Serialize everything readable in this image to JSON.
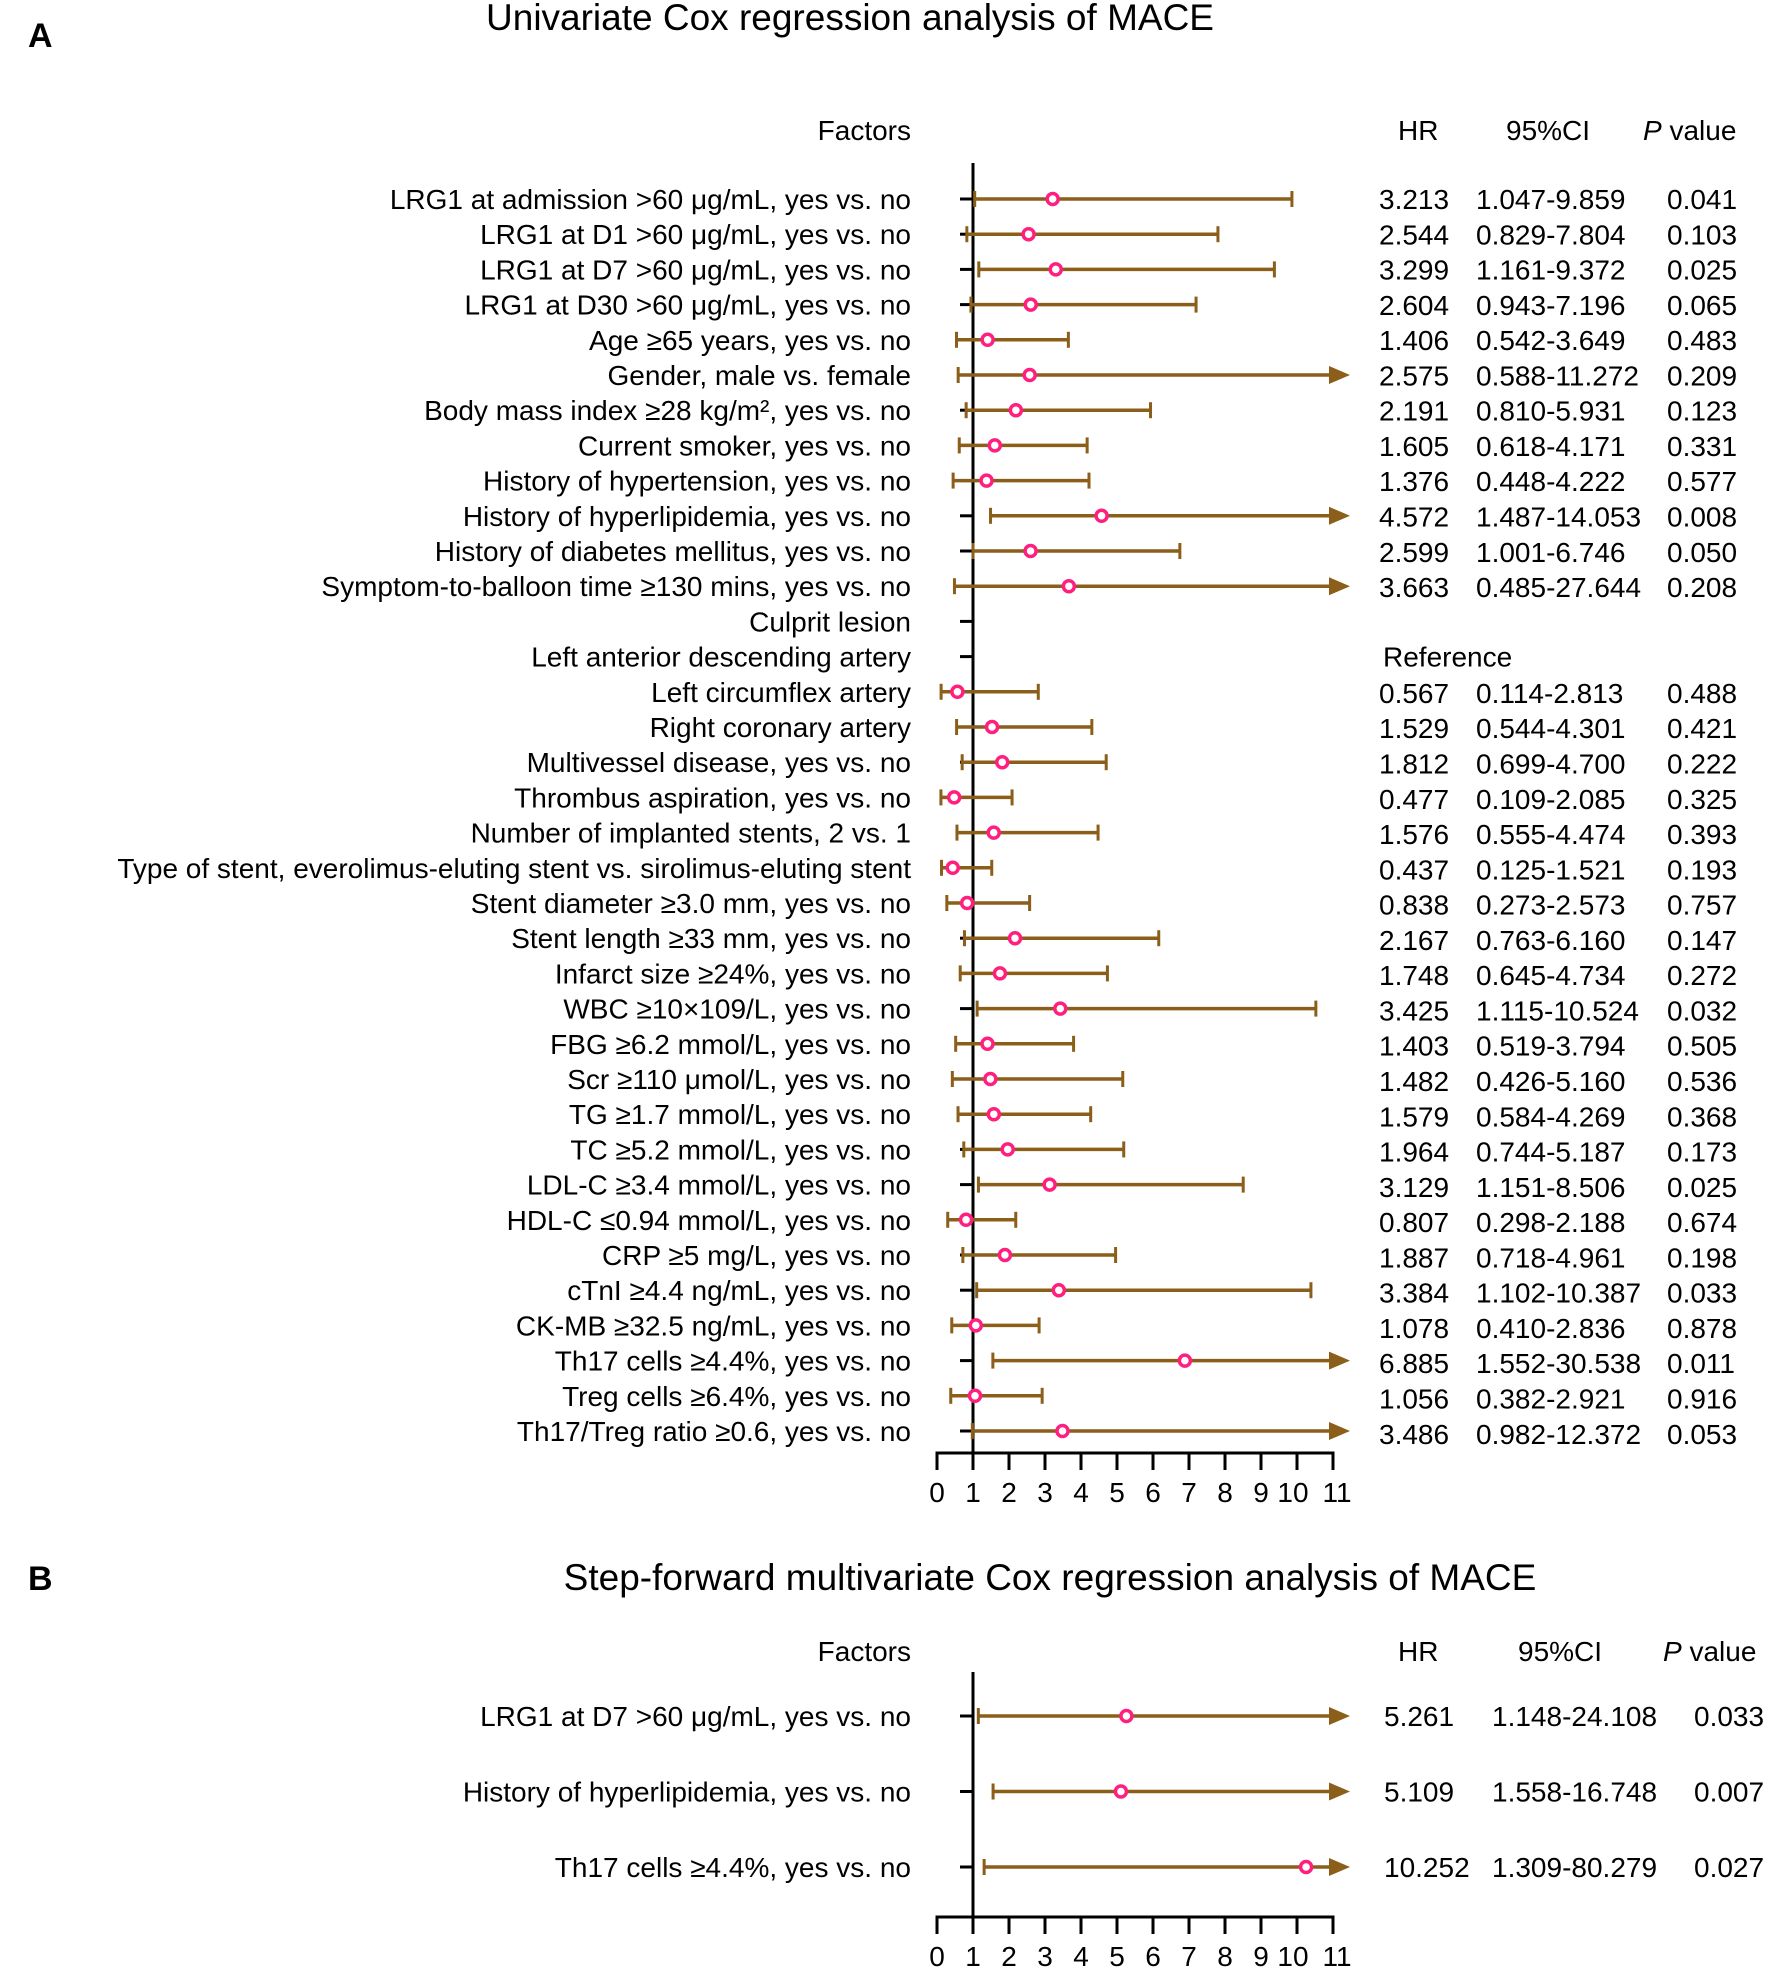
{
  "colors": {
    "whisker": "#8B5E1A",
    "point": "#FF1F7F",
    "axis": "#000000"
  },
  "chart_data": [
    {
      "type": "forest",
      "panel": "A",
      "title": "Univariate  Cox regression analysis of MACE",
      "headers": {
        "factors": "Factors",
        "hr": "HR",
        "ci": "95%CI",
        "p_italic": "P",
        "p_rest": " value"
      },
      "xlim": [
        0,
        11
      ],
      "xticks": [
        0,
        1,
        2,
        3,
        4,
        5,
        6,
        7,
        8,
        9,
        10,
        11
      ],
      "reference_line": 1,
      "rows": [
        {
          "label": "LRG1 at admission >60 μg/mL, yes vs. no",
          "hr": 3.213,
          "lo": 1.047,
          "hi": 9.859,
          "hr_text": "3.213",
          "ci_text": "1.047-9.859",
          "p": "0.041"
        },
        {
          "label": "LRG1 at D1 >60 μg/mL, yes vs. no",
          "hr": 2.544,
          "lo": 0.829,
          "hi": 7.804,
          "hr_text": "2.544",
          "ci_text": "0.829-7.804",
          "p": "0.103"
        },
        {
          "label": "LRG1 at D7 >60 μg/mL, yes vs. no",
          "hr": 3.299,
          "lo": 1.161,
          "hi": 9.372,
          "hr_text": "3.299",
          "ci_text": "1.161-9.372",
          "p": "0.025"
        },
        {
          "label": "LRG1 at D30 >60 μg/mL, yes vs. no",
          "hr": 2.604,
          "lo": 0.943,
          "hi": 7.196,
          "hr_text": "2.604",
          "ci_text": "0.943-7.196",
          "p": "0.065"
        },
        {
          "label": "Age ≥65 years, yes vs. no",
          "hr": 1.406,
          "lo": 0.542,
          "hi": 3.649,
          "hr_text": "1.406",
          "ci_text": "0.542-3.649",
          "p": "0.483"
        },
        {
          "label": "Gender, male vs. female",
          "hr": 2.575,
          "lo": 0.588,
          "hi": 11.272,
          "hr_text": "2.575",
          "ci_text": "0.588-11.272",
          "p": "0.209"
        },
        {
          "label": "Body mass index ≥28 kg/m²,  yes vs. no",
          "hr": 2.191,
          "lo": 0.81,
          "hi": 5.931,
          "hr_text": "2.191",
          "ci_text": "0.810-5.931",
          "p": "0.123"
        },
        {
          "label": "Current smoker, yes vs. no",
          "hr": 1.605,
          "lo": 0.618,
          "hi": 4.171,
          "hr_text": "1.605",
          "ci_text": "0.618-4.171",
          "p": "0.331"
        },
        {
          "label": "History of hypertension, yes vs. no",
          "hr": 1.376,
          "lo": 0.448,
          "hi": 4.222,
          "hr_text": "1.376",
          "ci_text": "0.448-4.222",
          "p": "0.577"
        },
        {
          "label": "History of hyperlipidemia, yes vs. no",
          "hr": 4.572,
          "lo": 1.487,
          "hi": 14.053,
          "hr_text": "4.572",
          "ci_text": "1.487-14.053",
          "p": "0.008"
        },
        {
          "label": "History of diabetes mellitus, yes vs. no",
          "hr": 2.599,
          "lo": 1.001,
          "hi": 6.746,
          "hr_text": "2.599",
          "ci_text": "1.001-6.746",
          "p": "0.050"
        },
        {
          "label": "Symptom-to-balloon time ≥130 mins, yes vs. no",
          "hr": 3.663,
          "lo": 0.485,
          "hi": 27.644,
          "hr_text": "3.663",
          "ci_text": "0.485-27.644",
          "p": "0.208"
        },
        {
          "label": "Culprit lesion"
        },
        {
          "label": "Left anterior descending artery",
          "note": "Reference"
        },
        {
          "label": "Left circumflex artery",
          "hr": 0.567,
          "lo": 0.114,
          "hi": 2.813,
          "hr_text": "0.567",
          "ci_text": "0.114-2.813",
          "p": "0.488"
        },
        {
          "label": "Right coronary artery",
          "hr": 1.529,
          "lo": 0.544,
          "hi": 4.301,
          "hr_text": "1.529",
          "ci_text": "0.544-4.301",
          "p": "0.421"
        },
        {
          "label": "Multivessel disease, yes vs. no",
          "hr": 1.812,
          "lo": 0.699,
          "hi": 4.7,
          "hr_text": "1.812",
          "ci_text": "0.699-4.700",
          "p": "0.222"
        },
        {
          "label": "Thrombus aspiration, yes vs. no",
          "hr": 0.477,
          "lo": 0.109,
          "hi": 2.085,
          "hr_text": "0.477",
          "ci_text": "0.109-2.085",
          "p": "0.325"
        },
        {
          "label": "Number of implanted stents, 2 vs. 1",
          "hr": 1.576,
          "lo": 0.555,
          "hi": 4.474,
          "hr_text": "1.576",
          "ci_text": "0.555-4.474",
          "p": "0.393"
        },
        {
          "label": "Type of stent, everolimus-eluting stent vs. sirolimus-eluting stent",
          "hr": 0.437,
          "lo": 0.125,
          "hi": 1.521,
          "hr_text": "0.437",
          "ci_text": "0.125-1.521",
          "p": "0.193"
        },
        {
          "label": "Stent diameter ≥3.0 mm, yes vs. no",
          "hr": 0.838,
          "lo": 0.273,
          "hi": 2.573,
          "hr_text": "0.838",
          "ci_text": "0.273-2.573",
          "p": "0.757"
        },
        {
          "label": "Stent length ≥33 mm, yes vs. no",
          "hr": 2.167,
          "lo": 0.763,
          "hi": 6.16,
          "hr_text": "2.167",
          "ci_text": "0.763-6.160",
          "p": "0.147"
        },
        {
          "label": "Infarct size ≥24%, yes vs. no",
          "hr": 1.748,
          "lo": 0.645,
          "hi": 4.734,
          "hr_text": "1.748",
          "ci_text": "0.645-4.734",
          "p": "0.272"
        },
        {
          "label": "WBC ≥10×109/L, yes vs. no",
          "hr": 3.425,
          "lo": 1.115,
          "hi": 10.524,
          "hr_text": "3.425",
          "ci_text": "1.115-10.524",
          "p": "0.032"
        },
        {
          "label": "FBG ≥6.2 mmol/L, yes vs. no",
          "hr": 1.403,
          "lo": 0.519,
          "hi": 3.794,
          "hr_text": "1.403",
          "ci_text": "0.519-3.794",
          "p": "0.505"
        },
        {
          "label": "Scr ≥110 μmol/L, yes vs. no",
          "hr": 1.482,
          "lo": 0.426,
          "hi": 5.16,
          "hr_text": "1.482",
          "ci_text": "0.426-5.160",
          "p": "0.536"
        },
        {
          "label": "TG ≥1.7 mmol/L, yes vs. no",
          "hr": 1.579,
          "lo": 0.584,
          "hi": 4.269,
          "hr_text": "1.579",
          "ci_text": "0.584-4.269",
          "p": "0.368"
        },
        {
          "label": "TC ≥5.2 mmol/L, yes vs. no",
          "hr": 1.964,
          "lo": 0.744,
          "hi": 5.187,
          "hr_text": "1.964",
          "ci_text": "0.744-5.187",
          "p": "0.173"
        },
        {
          "label": "LDL-C ≥3.4 mmol/L, yes vs. no",
          "hr": 3.129,
          "lo": 1.151,
          "hi": 8.506,
          "hr_text": "3.129",
          "ci_text": "1.151-8.506",
          "p": "0.025"
        },
        {
          "label": "HDL-C ≤0.94 mmol/L, yes vs. no",
          "hr": 0.807,
          "lo": 0.298,
          "hi": 2.188,
          "hr_text": "0.807",
          "ci_text": "0.298-2.188",
          "p": "0.674"
        },
        {
          "label": "CRP ≥5 mg/L, yes vs. no",
          "hr": 1.887,
          "lo": 0.718,
          "hi": 4.961,
          "hr_text": "1.887",
          "ci_text": "0.718-4.961",
          "p": "0.198"
        },
        {
          "label": "cTnI ≥4.4 ng/mL, yes vs. no",
          "hr": 3.384,
          "lo": 1.102,
          "hi": 10.387,
          "hr_text": "3.384",
          "ci_text": "1.102-10.387",
          "p": "0.033"
        },
        {
          "label": "CK-MB ≥32.5 ng/mL, yes vs. no",
          "hr": 1.078,
          "lo": 0.41,
          "hi": 2.836,
          "hr_text": "1.078",
          "ci_text": "0.410-2.836",
          "p": "0.878"
        },
        {
          "label": "Th17 cells ≥4.4%, yes vs. no",
          "hr": 6.885,
          "lo": 1.552,
          "hi": 30.538,
          "hr_text": "6.885",
          "ci_text": "1.552-30.538",
          "p": "0.011"
        },
        {
          "label": "Treg cells ≥6.4%, yes vs. no",
          "hr": 1.056,
          "lo": 0.382,
          "hi": 2.921,
          "hr_text": "1.056",
          "ci_text": "0.382-2.921",
          "p": "0.916"
        },
        {
          "label": "Th17/Treg ratio ≥0.6, yes vs. no",
          "hr": 3.486,
          "lo": 0.982,
          "hi": 12.372,
          "hr_text": "3.486",
          "ci_text": "0.982-12.372",
          "p": "0.053"
        }
      ]
    },
    {
      "type": "forest",
      "panel": "B",
      "title": "Step-forward multivariate Cox regression analysis of MACE",
      "headers": {
        "factors": "Factors",
        "hr": "HR",
        "ci": "95%CI",
        "p_italic": "P",
        "p_rest": " value"
      },
      "xlim": [
        0,
        11
      ],
      "xticks": [
        0,
        1,
        2,
        3,
        4,
        5,
        6,
        7,
        8,
        9,
        10,
        11
      ],
      "reference_line": 1,
      "rows": [
        {
          "label": "LRG1 at D7 >60 μg/mL, yes vs. no",
          "hr": 5.261,
          "lo": 1.148,
          "hi": 24.108,
          "hr_text": "5.261",
          "ci_text": "1.148-24.108",
          "p": "0.033"
        },
        {
          "label": "History of hyperlipidemia, yes vs. no",
          "hr": 5.109,
          "lo": 1.558,
          "hi": 16.748,
          "hr_text": "5.109",
          "ci_text": "1.558-16.748",
          "p": "0.007"
        },
        {
          "label": "Th17 cells ≥4.4%, yes vs. no",
          "hr": 10.252,
          "lo": 1.309,
          "hi": 80.279,
          "hr_text": "10.252",
          "ci_text": "1.309-80.279",
          "p": "0.027"
        }
      ]
    }
  ]
}
